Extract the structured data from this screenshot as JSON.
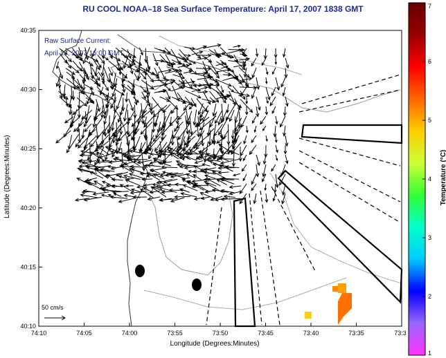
{
  "title": "RU COOL  NOAA–18  Sea Surface Temperature:  April 17, 2007 1838 GMT",
  "annotation": {
    "line1": "Raw Surface Current:",
    "line2": "April 17, 2007 16:00 GMT"
  },
  "axes": {
    "x_label": "Longitude (Degrees:Minutes)",
    "y_label": "Latitude (Degrees:Minutes)",
    "x_ticks": [
      "74:10",
      "74:05",
      "74:00",
      "73:55",
      "73:50",
      "73:45",
      "73:40",
      "73:35",
      "73:3"
    ],
    "y_ticks": [
      "40:35",
      "40:30",
      "40:25",
      "40:20",
      "40:15",
      "40:10"
    ]
  },
  "scale": {
    "label": "50 cm/s"
  },
  "colorbar": {
    "label": "Temperature (°C)",
    "ticks": [
      "7",
      "6",
      "5",
      "4",
      "3",
      "2",
      "1"
    ],
    "colors": [
      "#ff33ff",
      "#9966ff",
      "#0000ff",
      "#00ccff",
      "#00ffcc",
      "#33ff33",
      "#ccff33",
      "#ffcc00",
      "#ff6600",
      "#ff0000",
      "#990000",
      "#660000"
    ]
  },
  "sst_patches": [
    {
      "color": "#ff8c00"
    },
    {
      "color": "#ffd000"
    },
    {
      "color": "#ffa000"
    },
    {
      "color": "#ff7000"
    }
  ]
}
